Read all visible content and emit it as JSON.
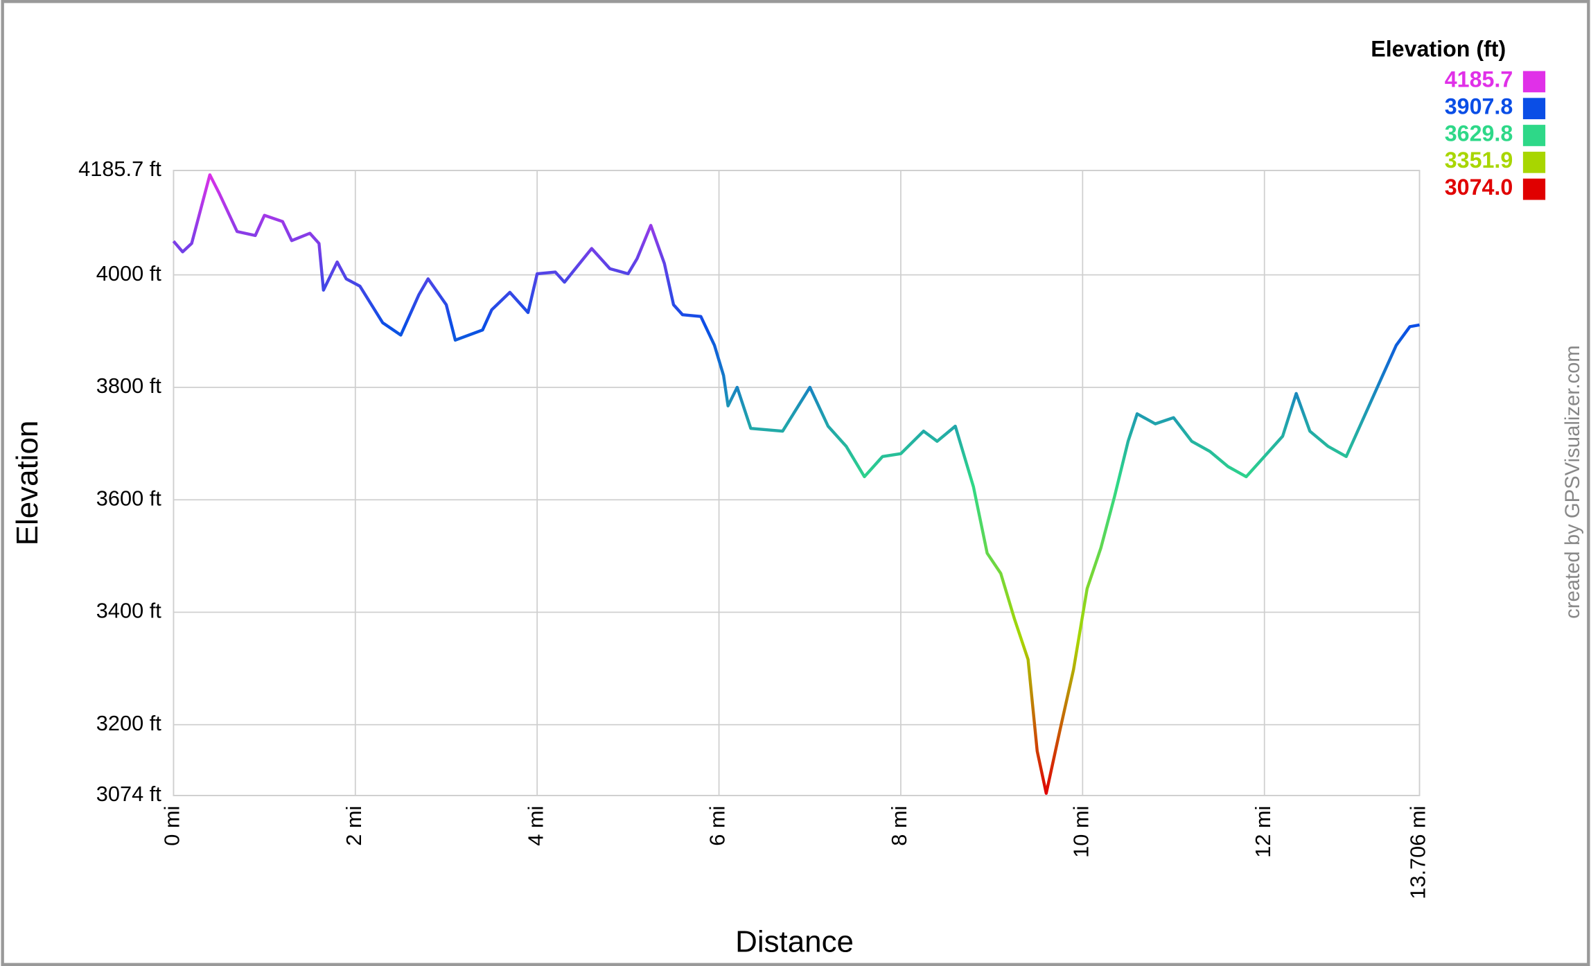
{
  "chart_data": {
    "type": "line",
    "x_label": "Distance",
    "y_label": "Elevation",
    "watermark": "created by GPSVisualizer.com",
    "x": [
      0,
      0.1,
      0.2,
      0.4,
      0.5,
      0.7,
      0.9,
      1.0,
      1.2,
      1.3,
      1.5,
      1.6,
      1.65,
      1.8,
      1.9,
      2.05,
      2.3,
      2.5,
      2.7,
      2.8,
      3.0,
      3.1,
      3.4,
      3.5,
      3.7,
      3.9,
      4.0,
      4.2,
      4.3,
      4.6,
      4.8,
      5.0,
      5.1,
      5.25,
      5.4,
      5.5,
      5.6,
      5.8,
      5.95,
      6.05,
      6.1,
      6.2,
      6.35,
      6.7,
      7.0,
      7.2,
      7.4,
      7.6,
      7.8,
      8.0,
      8.25,
      8.4,
      8.6,
      8.8,
      8.95,
      9.1,
      9.25,
      9.4,
      9.5,
      9.6,
      9.75,
      9.9,
      10.05,
      10.2,
      10.35,
      10.5,
      10.6,
      10.8,
      11.0,
      11.2,
      11.4,
      11.6,
      11.8,
      12.0,
      12.2,
      12.35,
      12.5,
      12.7,
      12.9,
      13.1,
      13.3,
      13.45,
      13.6,
      13.706
    ],
    "values": [
      4060,
      4041,
      4056,
      4178,
      4146,
      4077,
      4070,
      4106,
      4095,
      4061,
      4074,
      4056,
      3973,
      4023,
      3993,
      3980,
      3915,
      3893,
      3965,
      3993,
      3947,
      3884,
      3902,
      3938,
      3969,
      3933,
      4002,
      4005,
      3987,
      4047,
      4011,
      4002,
      4029,
      4088,
      4020,
      3947,
      3929,
      3926,
      3875,
      3821,
      3767,
      3800,
      3727,
      3722,
      3800,
      3731,
      3695,
      3641,
      3677,
      3682,
      3722,
      3704,
      3731,
      3623,
      3505,
      3469,
      3388,
      3316,
      3153,
      3078,
      3190,
      3298,
      3442,
      3514,
      3605,
      3704,
      3753,
      3735,
      3746,
      3704,
      3686,
      3659,
      3641,
      3677,
      3713,
      3789,
      3722,
      3695,
      3677,
      3749,
      3821,
      3875,
      3908,
      3911
    ],
    "xlim": [
      0,
      13.706
    ],
    "xticks": [
      {
        "value": 0,
        "label": "0 mi"
      },
      {
        "value": 2,
        "label": "2 mi"
      },
      {
        "value": 4,
        "label": "4 mi"
      },
      {
        "value": 6,
        "label": "6 mi"
      },
      {
        "value": 8,
        "label": "8 mi"
      },
      {
        "value": 10,
        "label": "10 mi"
      },
      {
        "value": 12,
        "label": "12 mi"
      },
      {
        "value": 13.706,
        "label": "13.706 mi"
      }
    ],
    "ylim": [
      3074,
      4185.7
    ],
    "yticks": [
      {
        "value": 3074,
        "label": "3074 ft"
      },
      {
        "value": 3200,
        "label": "3200 ft"
      },
      {
        "value": 3400,
        "label": "3400 ft"
      },
      {
        "value": 3600,
        "label": "3600 ft"
      },
      {
        "value": 3800,
        "label": "3800 ft"
      },
      {
        "value": 4000,
        "label": "4000 ft"
      },
      {
        "value": 4185.7,
        "label": "4185.7 ft"
      }
    ],
    "grid": true,
    "legend": {
      "title": "Elevation (ft)",
      "values": [
        4185.7,
        3907.8,
        3629.8,
        3351.9,
        3074
      ],
      "value_labels": [
        "4185.7",
        "3907.8",
        "3629.8",
        "3351.9",
        "3074.0"
      ],
      "colors": [
        "#e030e8",
        "#0a4ee6",
        "#2ed888",
        "#a8d600",
        "#e00000"
      ]
    }
  }
}
